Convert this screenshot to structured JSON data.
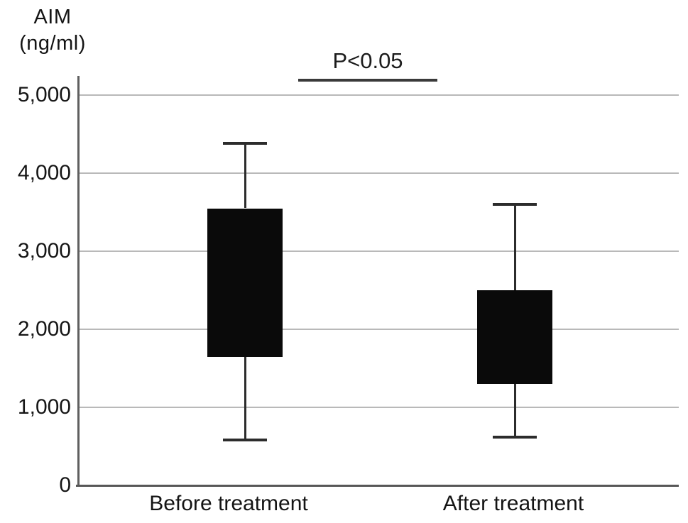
{
  "figure": {
    "y_axis_title_line1": "AIM",
    "y_axis_title_line2": "(ng/ml)"
  },
  "annotation": {
    "significance_label": "P<0.05"
  },
  "colors": {
    "box_fill": "#0a0a0a",
    "whisker": "#2c2c2c",
    "gridline": "#b9b9b9",
    "axis": "#5f5f5f",
    "text": "#141414"
  },
  "chart_data": {
    "type": "boxplot",
    "title": "",
    "ylabel": "AIM (ng/ml)",
    "xlabel": "",
    "ylim": [
      0,
      5000
    ],
    "yticks": [
      0,
      1000,
      2000,
      3000,
      4000,
      5000
    ],
    "ytick_labels": [
      "0",
      "1,000",
      "2,000",
      "3,000",
      "4,000",
      "5,000"
    ],
    "grid": true,
    "legend_position": "none",
    "annotation": "P<0.05",
    "categories": [
      "Before treatment",
      "After treatment"
    ],
    "series": [
      {
        "name": "Before treatment",
        "whisker_low": 580,
        "q1": 1650,
        "q3": 3550,
        "whisker_high": 4380
      },
      {
        "name": "After treatment",
        "whisker_low": 620,
        "q1": 1300,
        "q3": 2500,
        "whisker_high": 3600
      }
    ]
  }
}
